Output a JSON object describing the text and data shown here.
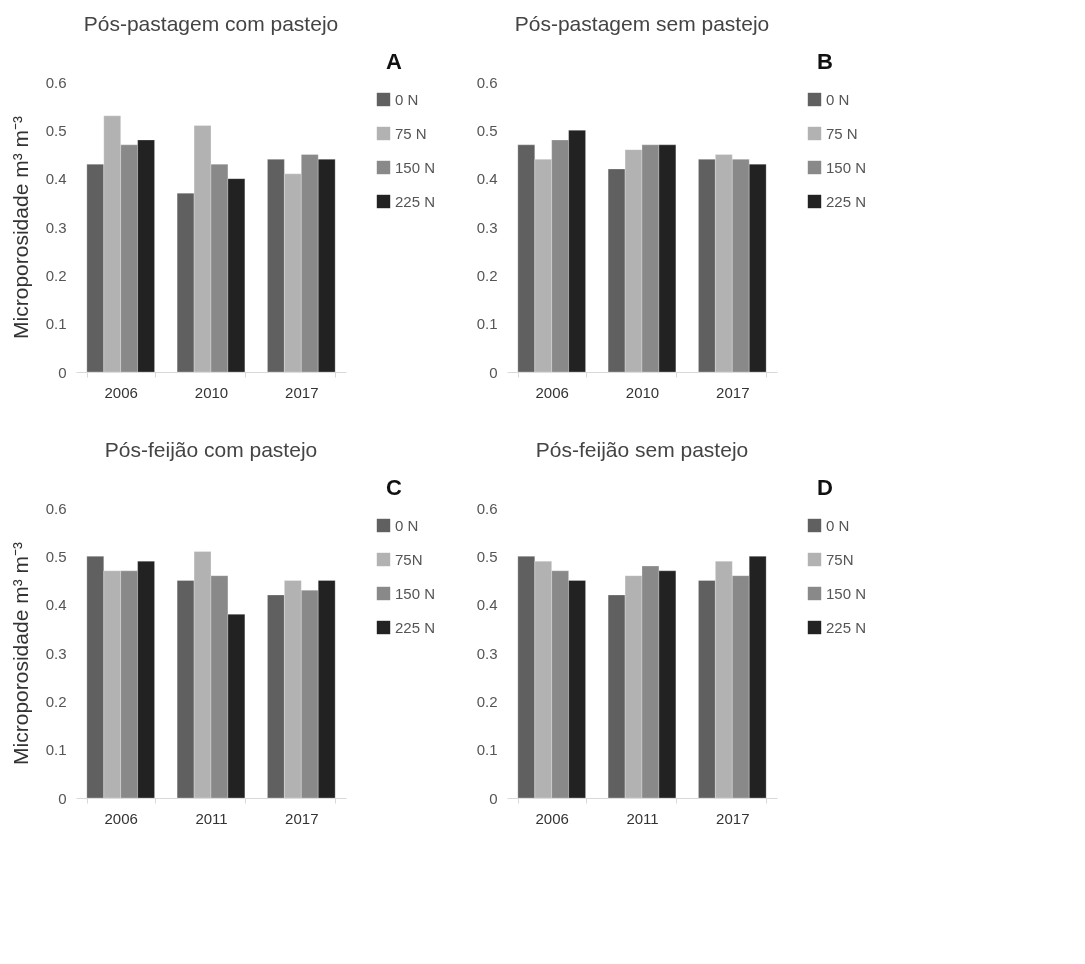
{
  "chart_data": [
    {
      "type": "bar",
      "title": "Pós-pastagem com pastejo",
      "ylabel": "Microporosidade m³ m⁻³",
      "annotations": [
        "A"
      ],
      "categories": [
        "2006",
        "2010",
        "2017"
      ],
      "ylim": [
        0,
        0.6
      ],
      "yticks": [
        0,
        0.1,
        0.2,
        0.3,
        0.4,
        0.5,
        0.6
      ],
      "grid": false,
      "legend": "right",
      "series": [
        {
          "name": "0 N",
          "color": "#606060",
          "values": [
            0.43,
            0.37,
            0.44
          ]
        },
        {
          "name": "75 N",
          "color": "#b2b2b2",
          "values": [
            0.53,
            0.51,
            0.41
          ]
        },
        {
          "name": "150 N",
          "color": "#898989",
          "values": [
            0.47,
            0.43,
            0.45
          ]
        },
        {
          "name": "225 N",
          "color": "#222222",
          "values": [
            0.48,
            0.4,
            0.44
          ]
        }
      ]
    },
    {
      "type": "bar",
      "title": "Pós-pastagem sem pastejo",
      "annotations": [
        "B"
      ],
      "categories": [
        "2006",
        "2010",
        "2017"
      ],
      "ylim": [
        0,
        0.6
      ],
      "yticks": [
        0,
        0.1,
        0.2,
        0.3,
        0.4,
        0.5,
        0.6
      ],
      "grid": false,
      "legend": "right",
      "series": [
        {
          "name": "0 N",
          "color": "#606060",
          "values": [
            0.47,
            0.42,
            0.44
          ]
        },
        {
          "name": "75 N",
          "color": "#b2b2b2",
          "values": [
            0.44,
            0.46,
            0.45
          ]
        },
        {
          "name": "150 N",
          "color": "#898989",
          "values": [
            0.48,
            0.47,
            0.44
          ]
        },
        {
          "name": "225 N",
          "color": "#222222",
          "values": [
            0.5,
            0.47,
            0.43
          ]
        }
      ]
    },
    {
      "type": "bar",
      "title": "Pós-feijão com pastejo",
      "ylabel": "Microporosidade m³ m⁻³",
      "annotations": [
        "C"
      ],
      "categories": [
        "2006",
        "2011",
        "2017"
      ],
      "ylim": [
        0,
        0.6
      ],
      "yticks": [
        0,
        0.1,
        0.2,
        0.3,
        0.4,
        0.5,
        0.6
      ],
      "grid": false,
      "legend": "right",
      "series": [
        {
          "name": "0 N",
          "color": "#606060",
          "values": [
            0.5,
            0.45,
            0.42
          ]
        },
        {
          "name": "75N",
          "color": "#b2b2b2",
          "values": [
            0.47,
            0.51,
            0.45
          ]
        },
        {
          "name": "150 N",
          "color": "#898989",
          "values": [
            0.47,
            0.46,
            0.43
          ]
        },
        {
          "name": "225 N",
          "color": "#222222",
          "values": [
            0.49,
            0.38,
            0.45
          ]
        }
      ]
    },
    {
      "type": "bar",
      "title": "Pós-feijão sem pastejo",
      "annotations": [
        "D"
      ],
      "categories": [
        "2006",
        "2011",
        "2017"
      ],
      "ylim": [
        0,
        0.6
      ],
      "yticks": [
        0,
        0.1,
        0.2,
        0.3,
        0.4,
        0.5,
        0.6
      ],
      "grid": false,
      "legend": "right",
      "series": [
        {
          "name": "0 N",
          "color": "#606060",
          "values": [
            0.5,
            0.42,
            0.45
          ]
        },
        {
          "name": "75N",
          "color": "#b2b2b2",
          "values": [
            0.49,
            0.46,
            0.49
          ]
        },
        {
          "name": "150 N",
          "color": "#898989",
          "values": [
            0.47,
            0.48,
            0.46
          ]
        },
        {
          "name": "225 N",
          "color": "#222222",
          "values": [
            0.45,
            0.47,
            0.5
          ]
        }
      ]
    }
  ]
}
